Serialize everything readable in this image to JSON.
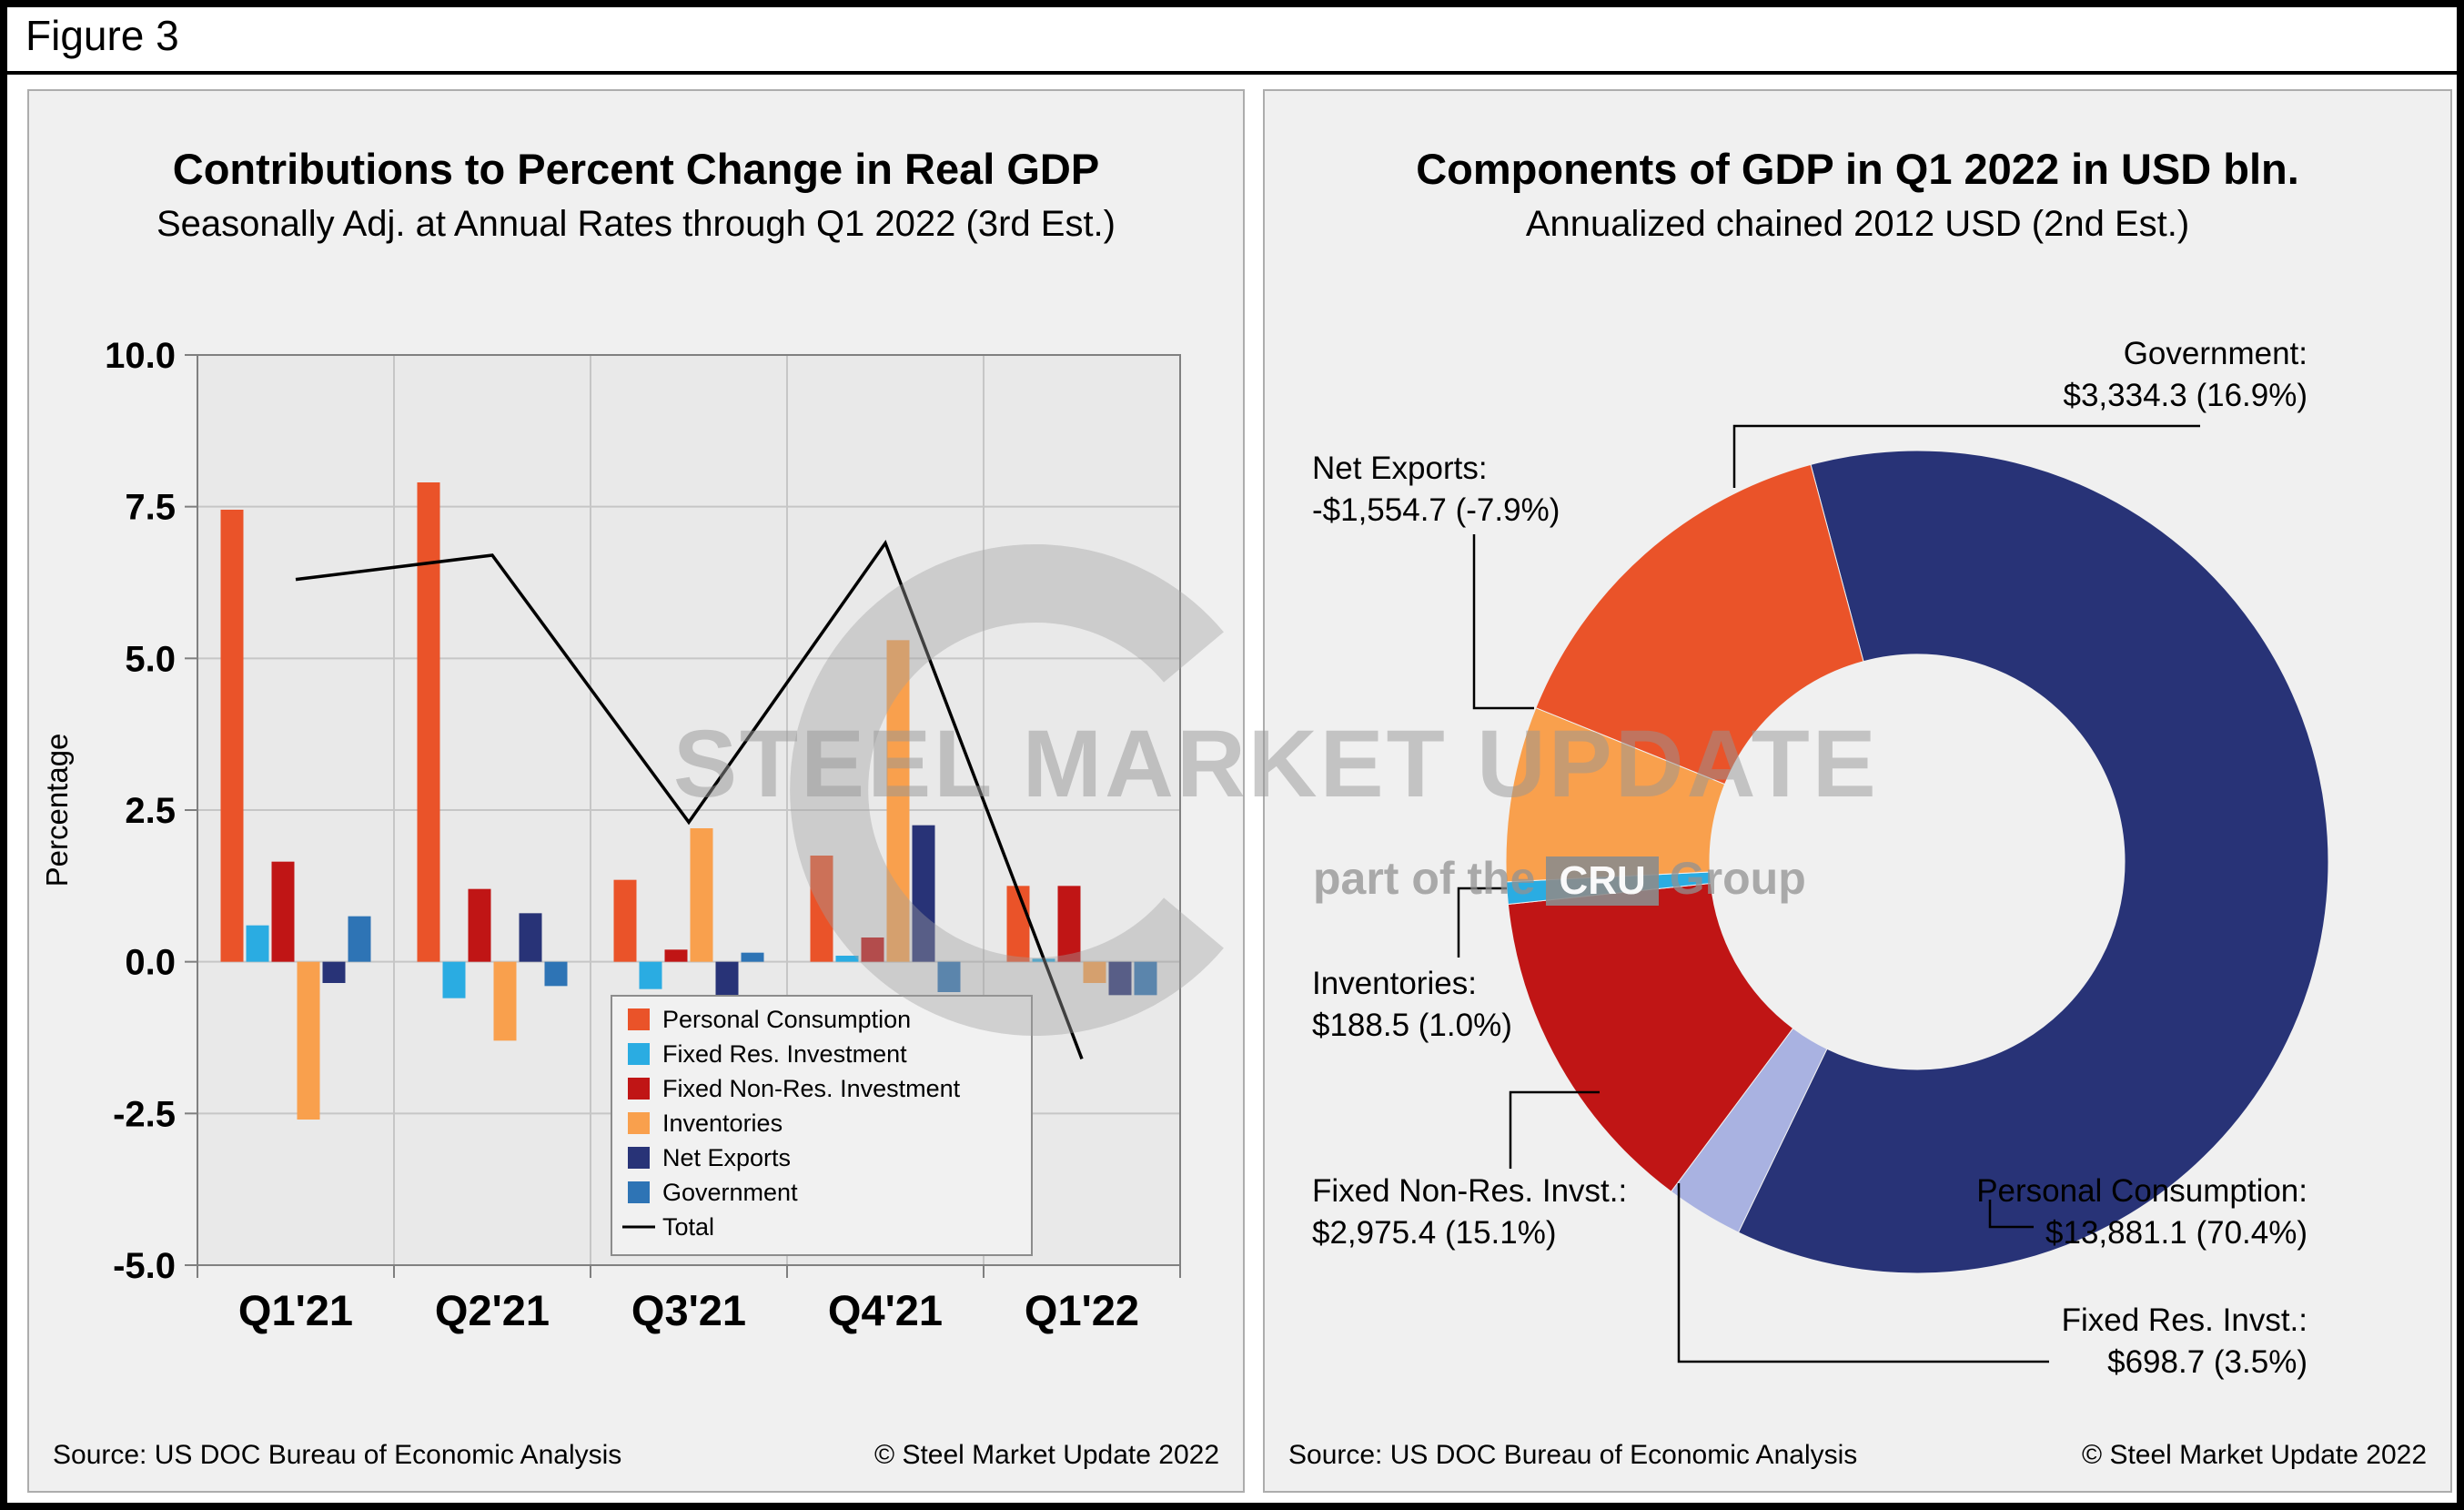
{
  "figure_label": "Figure 3",
  "left_panel": {
    "title": "Contributions to Percent Change in Real GDP",
    "subtitle": "Seasonally Adj. at Annual Rates through Q1 2022 (3rd Est.)",
    "source": "Source: US DOC Bureau of Economic Analysis",
    "copyright": "© Steel Market Update 2022"
  },
  "right_panel": {
    "title": "Components of GDP in Q1 2022 in USD bln.",
    "subtitle": "Annualized chained 2012 USD (2nd Est.)",
    "source": "Source: US DOC Bureau of Economic Analysis",
    "copyright": "© Steel Market Update 2022"
  },
  "watermark": {
    "title": "STEEL MARKET UPDATE",
    "tagline_prefix": "part of the",
    "tagline_badge": "CRU",
    "tagline_suffix": "Group"
  },
  "chart_data": [
    {
      "type": "bar",
      "title": "Contributions to Percent Change in Real GDP",
      "subtitle": "Seasonally Adj. at Annual Rates through Q1 2022 (3rd Est.)",
      "ylabel": "Percentage",
      "ylim": [
        -5.0,
        10.0
      ],
      "yticks": [
        10.0,
        7.5,
        5.0,
        2.5,
        0.0,
        -2.5,
        -5.0
      ],
      "grid": true,
      "legend_position": "inside-bottom-right",
      "categories": [
        "Q1'21",
        "Q2'21",
        "Q3'21",
        "Q4'21",
        "Q1'22"
      ],
      "series": [
        {
          "name": "Personal Consumption",
          "color": "#EA5329",
          "values": [
            7.45,
            7.9,
            1.35,
            1.75,
            1.25
          ]
        },
        {
          "name": "Fixed Res. Investment",
          "color": "#2AACE2",
          "values": [
            0.6,
            -0.6,
            -0.45,
            0.1,
            0.05
          ]
        },
        {
          "name": "Fixed Non-Res. Investment",
          "color": "#C01515",
          "values": [
            1.65,
            1.2,
            0.2,
            0.4,
            1.25
          ]
        },
        {
          "name": "Inventories",
          "color": "#F9A04D",
          "values": [
            -2.6,
            -1.3,
            2.2,
            5.3,
            -0.35
          ]
        },
        {
          "name": "Net Exports",
          "color": "#283377",
          "values": [
            -0.35,
            0.8,
            -0.6,
            2.25,
            -0.55
          ]
        },
        {
          "name": "Government",
          "color": "#2E74B5",
          "values": [
            0.75,
            -0.4,
            0.15,
            -0.5,
            -0.55
          ]
        }
      ],
      "line_series": {
        "name": "Total",
        "color": "#000000",
        "values": [
          6.3,
          6.7,
          2.3,
          6.9,
          -1.6
        ]
      }
    },
    {
      "type": "pie",
      "donut": true,
      "title": "Components of GDP in Q1 2022 in USD bln.",
      "subtitle": "Annualized chained 2012 USD (2nd Est.)",
      "start_angle_deg": -15,
      "slices": [
        {
          "name": "Personal Consumption",
          "amount": "$13,881.1",
          "percent": "70.4%",
          "value": 70.4,
          "color": "#283377",
          "label_line1": "Personal Consumption:",
          "label_line2": "$13,881.1 (70.4%)"
        },
        {
          "name": "Fixed Res. Invst.",
          "amount": "$698.7",
          "percent": "3.5%",
          "value": 3.5,
          "color": "#A9B2E1",
          "label_line1": "Fixed Res. Invst.:",
          "label_line2": "$698.7 (3.5%)"
        },
        {
          "name": "Fixed Non-Res. Invst.",
          "amount": "$2,975.4",
          "percent": "15.1%",
          "value": 15.1,
          "color": "#C01515",
          "label_line1": "Fixed Non-Res. Invst.:",
          "label_line2": "$2,975.4 (15.1%)"
        },
        {
          "name": "Inventories",
          "amount": "$188.5",
          "percent": "1.0%",
          "value": 1.0,
          "color": "#2AACE2",
          "label_line1": "Inventories:",
          "label_line2": "$188.5 (1.0%)"
        },
        {
          "name": "Net Exports",
          "amount": "-$1,554.7",
          "percent": "-7.9%",
          "value": 7.9,
          "color": "#F9A04D",
          "label_line1": "Net Exports:",
          "label_line2": "-$1,554.7 (-7.9%)"
        },
        {
          "name": "Government",
          "amount": "$3,334.3",
          "percent": "16.9%",
          "value": 16.9,
          "color": "#EA5329",
          "label_line1": "Government:",
          "label_line2": "$3,334.3 (16.9%)"
        }
      ]
    }
  ]
}
